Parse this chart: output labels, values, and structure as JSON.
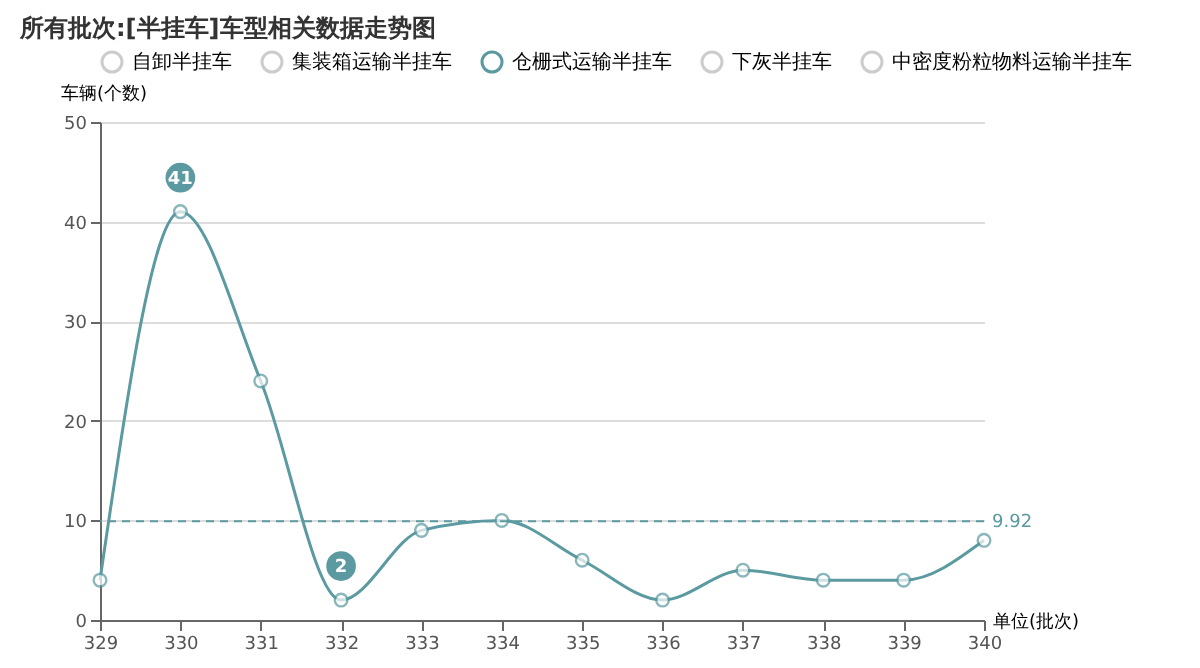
{
  "chart_data": {
    "type": "line",
    "title": "所有批次:[半挂车]车型相关数据走势图",
    "xlabel": "单位(批次)",
    "ylabel": "车辆(个数)",
    "x": [
      329,
      330,
      331,
      332,
      333,
      334,
      335,
      336,
      337,
      338,
      339,
      340
    ],
    "series": [
      {
        "name": "自卸半挂车",
        "color": "#cccccc",
        "values": [
          null,
          null,
          null,
          null,
          null,
          null,
          null,
          null,
          null,
          null,
          null,
          null
        ]
      },
      {
        "name": "集装箱运输半挂车",
        "color": "#cccccc",
        "values": [
          null,
          null,
          null,
          null,
          null,
          null,
          null,
          null,
          null,
          null,
          null,
          null
        ]
      },
      {
        "name": "仓栅式运输半挂车",
        "color": "#5b9aa0",
        "values": [
          4,
          41,
          24,
          2,
          9,
          10,
          6,
          2,
          5,
          4,
          4,
          8
        ],
        "value_labels": [
          null,
          "41",
          null,
          "2",
          null,
          null,
          null,
          null,
          null,
          null,
          null,
          null
        ]
      },
      {
        "name": "下灰半挂车",
        "color": "#cccccc",
        "values": [
          null,
          null,
          null,
          null,
          null,
          null,
          null,
          null,
          null,
          null,
          null,
          null
        ]
      },
      {
        "name": "中密度粉粒物料运输半挂车",
        "color": "#cccccc",
        "values": [
          null,
          null,
          null,
          null,
          null,
          null,
          null,
          null,
          null,
          null,
          null,
          null
        ]
      }
    ],
    "xlim": [
      329,
      340
    ],
    "xticks": [
      329,
      330,
      331,
      332,
      333,
      334,
      335,
      336,
      337,
      338,
      339,
      340
    ],
    "ylim": [
      0,
      50
    ],
    "yticks": [
      0,
      10,
      20,
      30,
      40,
      50
    ],
    "ref_lines": [
      {
        "axis": "y",
        "value": 9.92,
        "label": "9.92",
        "color": "#5b9aa0",
        "line_style": "dashed"
      }
    ],
    "grid": "y",
    "legend": "top",
    "marker": "circle",
    "line_style": "solid"
  }
}
